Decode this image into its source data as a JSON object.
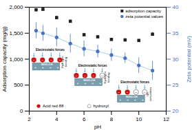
{
  "chart_data": {
    "type": "scatter",
    "xlabel": "pH",
    "ylabel": "Adsorption capacity (mg/g)",
    "y2label": "Zeta potential (mV)",
    "x": [
      2.5,
      3.0,
      4.0,
      5.0,
      6.0,
      7.0,
      8.0,
      9.0,
      10.0,
      11.0
    ],
    "series": [
      {
        "name": "adsorption capacity",
        "color": "#222222",
        "marker": "square",
        "values": [
          1950,
          1960,
          1800,
          1730,
          1470,
          1430,
          1380,
          1370,
          1360,
          1480
        ],
        "errors": [
          30,
          25,
          30,
          25,
          30,
          30,
          25,
          25,
          25,
          35
        ]
      },
      {
        "name": "zeta potential values",
        "color": "#4472c4",
        "marker": "circle",
        "axis": "y2",
        "line_style": "solid",
        "line_color": "#aacce8",
        "values": [
          35.5,
          35.0,
          34.2,
          33.0,
          32.0,
          31.5,
          30.8,
          30.2,
          28.8,
          27.8
        ],
        "errors": [
          1.5,
          1.5,
          1.8,
          1.8,
          1.5,
          1.2,
          1.2,
          1.0,
          1.5,
          1.8
        ]
      }
    ],
    "xlim": [
      2,
      12
    ],
    "xticks": [
      2,
      4,
      6,
      8,
      10,
      12
    ],
    "ylim": [
      0,
      2000
    ],
    "yticks": [
      0,
      500,
      1000,
      1500,
      2000
    ],
    "y2lim": [
      20,
      40
    ],
    "y2ticks": [
      20,
      25,
      30,
      35,
      40
    ],
    "legend": "upper right",
    "annotations": [
      {
        "text": "Electrostatic forces",
        "side_text": "Hydrogen\nbonding",
        "plate_text": "MGO-CH",
        "plate_sign": "+",
        "plate_charges": 4,
        "ion_sign": "−",
        "ions": {
          "Acid red 88": 4,
          "hydroxyl": 0
        },
        "arrow_color": "#5ab4e8",
        "plate_color": "#7a9eae",
        "plate_edge_color": "#4a7888"
      },
      {
        "text": "Electrostatic forces",
        "side_text": "Hydrogen\nbonding",
        "plate_text": "MGO-CH",
        "plate_sign": "+",
        "plate_charges": 4,
        "ion_sign": "−",
        "ions": {
          "Acid red 88": 3,
          "hydroxyl": 1
        },
        "arrow_color": "#5ab4e8",
        "plate_color": "#7a9eae",
        "plate_edge_color": "#4a7888"
      },
      {
        "text": "Electrostatic forces",
        "side_text": "OH\ncompetition",
        "plate_text": "MGO-CH",
        "plate_sign": "+",
        "plate_charges": 4,
        "ion_sign": "−",
        "ions": {
          "Acid red 88": 2,
          "hydroxyl": 2
        },
        "arrow_color": "#5ab4e8",
        "plate_color": "#7a9eae",
        "plate_edge_color": "#4a7888"
      }
    ],
    "key": [
      {
        "text": "Acid red 88",
        "symbol": "●",
        "color": "#cc1111"
      },
      {
        "text": "hydroxyl",
        "symbol": "○",
        "color": "#333333"
      }
    ]
  }
}
